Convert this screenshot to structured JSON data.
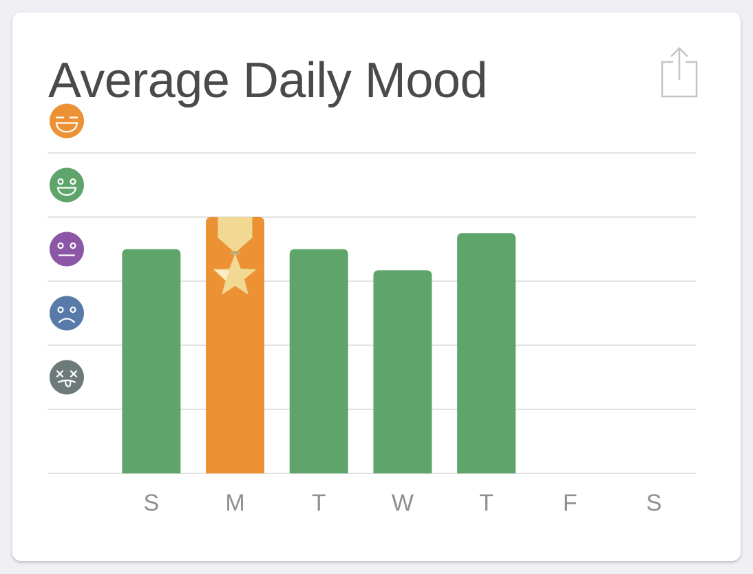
{
  "card": {
    "title": "Average Daily Mood",
    "share_icon": "share-icon"
  },
  "chart_data": {
    "type": "bar",
    "title": "Average Daily Mood",
    "categories": [
      "S",
      "M",
      "T",
      "W",
      "T",
      "F",
      "S"
    ],
    "values": [
      3.5,
      4.0,
      3.5,
      3.17,
      3.75,
      null,
      null
    ],
    "ylim": [
      0,
      5
    ],
    "grid": true,
    "y_levels": [
      {
        "value": 5,
        "mood": "rad",
        "icon": "rad-face-icon",
        "color": "#ec9235"
      },
      {
        "value": 4,
        "mood": "good",
        "icon": "good-face-icon",
        "color": "#5fa56b"
      },
      {
        "value": 3,
        "mood": "meh",
        "icon": "meh-face-icon",
        "color": "#8b57a6"
      },
      {
        "value": 2,
        "mood": "bad",
        "icon": "bad-face-icon",
        "color": "#577aa8"
      },
      {
        "value": 1,
        "mood": "awful",
        "icon": "awful-face-icon",
        "color": "#6e7a7a"
      }
    ],
    "best_day_index": 1,
    "best_day_icon": "star-medal-icon",
    "colors": {
      "bar": "#5fa56b",
      "best_bar": "#ec9235",
      "medal": "#f1d893",
      "grid": "#c4c4c4",
      "label": "#8e8e93"
    }
  }
}
